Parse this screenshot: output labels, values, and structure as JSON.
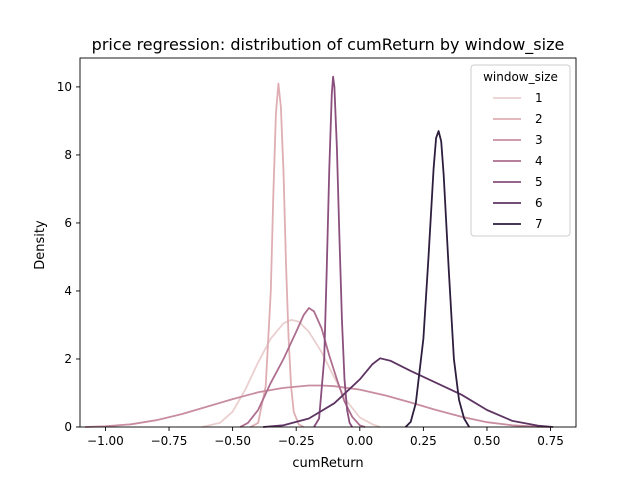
{
  "chart_data": {
    "type": "line",
    "title": "price regression: distribution of cumReturn by window_size",
    "xlabel": "cumReturn",
    "ylabel": "Density",
    "xlim": [
      -1.1,
      0.85
    ],
    "ylim": [
      0,
      10.85
    ],
    "xticks": [
      -1.0,
      -0.75,
      -0.5,
      -0.25,
      0.0,
      0.25,
      0.5,
      0.75
    ],
    "xtick_labels": [
      "−1.00",
      "−0.75",
      "−0.50",
      "−0.25",
      "0.00",
      "0.25",
      "0.50",
      "0.75"
    ],
    "yticks": [
      0,
      2,
      4,
      6,
      8,
      10
    ],
    "ytick_labels": [
      "0",
      "2",
      "4",
      "6",
      "8",
      "10"
    ],
    "grid": false,
    "legend": {
      "title": "window_size",
      "placement": "top-right",
      "entries": [
        "1",
        "2",
        "3",
        "4",
        "5",
        "6",
        "7"
      ]
    },
    "series": [
      {
        "name": "1",
        "color": "#ebcfcf",
        "points": [
          [
            -0.62,
            0.0
          ],
          [
            -0.55,
            0.12
          ],
          [
            -0.5,
            0.45
          ],
          [
            -0.45,
            1.1
          ],
          [
            -0.4,
            1.9
          ],
          [
            -0.35,
            2.6
          ],
          [
            -0.3,
            3.05
          ],
          [
            -0.27,
            3.15
          ],
          [
            -0.24,
            3.1
          ],
          [
            -0.2,
            2.8
          ],
          [
            -0.15,
            2.2
          ],
          [
            -0.1,
            1.45
          ],
          [
            -0.05,
            0.75
          ],
          [
            0.0,
            0.28
          ],
          [
            0.05,
            0.08
          ],
          [
            0.08,
            0.0
          ]
        ]
      },
      {
        "name": "2",
        "color": "#dfaeb3",
        "points": [
          [
            -0.43,
            0.0
          ],
          [
            -0.4,
            0.12
          ],
          [
            -0.37,
            1.2
          ],
          [
            -0.35,
            4.0
          ],
          [
            -0.34,
            6.8
          ],
          [
            -0.33,
            9.2
          ],
          [
            -0.32,
            10.1
          ],
          [
            -0.31,
            9.4
          ],
          [
            -0.3,
            7.5
          ],
          [
            -0.29,
            4.8
          ],
          [
            -0.28,
            2.6
          ],
          [
            -0.27,
            1.2
          ],
          [
            -0.26,
            0.45
          ],
          [
            -0.24,
            0.08
          ],
          [
            -0.22,
            0.0
          ]
        ]
      },
      {
        "name": "3",
        "color": "#c98da0",
        "points": [
          [
            -1.08,
            0.0
          ],
          [
            -1.0,
            0.02
          ],
          [
            -0.9,
            0.08
          ],
          [
            -0.8,
            0.2
          ],
          [
            -0.7,
            0.38
          ],
          [
            -0.6,
            0.6
          ],
          [
            -0.5,
            0.82
          ],
          [
            -0.4,
            1.02
          ],
          [
            -0.3,
            1.15
          ],
          [
            -0.2,
            1.22
          ],
          [
            -0.15,
            1.22
          ],
          [
            -0.1,
            1.2
          ],
          [
            0.0,
            1.1
          ],
          [
            0.1,
            0.93
          ],
          [
            0.2,
            0.72
          ],
          [
            0.3,
            0.5
          ],
          [
            0.4,
            0.3
          ],
          [
            0.5,
            0.14
          ],
          [
            0.6,
            0.05
          ],
          [
            0.7,
            0.01
          ],
          [
            0.75,
            0.0
          ]
        ]
      },
      {
        "name": "4",
        "color": "#ad6e8f",
        "points": [
          [
            -0.47,
            0.0
          ],
          [
            -0.44,
            0.12
          ],
          [
            -0.4,
            0.5
          ],
          [
            -0.35,
            1.3
          ],
          [
            -0.3,
            2.0
          ],
          [
            -0.25,
            2.8
          ],
          [
            -0.22,
            3.3
          ],
          [
            -0.2,
            3.5
          ],
          [
            -0.18,
            3.4
          ],
          [
            -0.15,
            2.9
          ],
          [
            -0.12,
            2.1
          ],
          [
            -0.09,
            1.4
          ],
          [
            -0.06,
            0.75
          ],
          [
            -0.03,
            0.3
          ],
          [
            0.0,
            0.05
          ],
          [
            0.02,
            0.0
          ]
        ]
      },
      {
        "name": "5",
        "color": "#8a4f7d",
        "points": [
          [
            -0.18,
            0.0
          ],
          [
            -0.16,
            0.25
          ],
          [
            -0.14,
            2.0
          ],
          [
            -0.13,
            4.6
          ],
          [
            -0.12,
            7.6
          ],
          [
            -0.11,
            9.8
          ],
          [
            -0.105,
            10.3
          ],
          [
            -0.1,
            10.0
          ],
          [
            -0.09,
            8.2
          ],
          [
            -0.08,
            5.6
          ],
          [
            -0.07,
            3.1
          ],
          [
            -0.06,
            1.4
          ],
          [
            -0.05,
            0.5
          ],
          [
            -0.04,
            0.12
          ],
          [
            -0.03,
            0.0
          ]
        ]
      },
      {
        "name": "6",
        "color": "#5e3463",
        "points": [
          [
            -0.38,
            0.0
          ],
          [
            -0.3,
            0.05
          ],
          [
            -0.2,
            0.25
          ],
          [
            -0.1,
            0.7
          ],
          [
            0.0,
            1.4
          ],
          [
            0.05,
            1.85
          ],
          [
            0.08,
            2.02
          ],
          [
            0.12,
            1.95
          ],
          [
            0.2,
            1.65
          ],
          [
            0.3,
            1.3
          ],
          [
            0.4,
            0.95
          ],
          [
            0.5,
            0.5
          ],
          [
            0.6,
            0.18
          ],
          [
            0.7,
            0.04
          ],
          [
            0.76,
            0.0
          ]
        ]
      },
      {
        "name": "7",
        "color": "#2d1e3e",
        "points": [
          [
            0.18,
            0.0
          ],
          [
            0.2,
            0.15
          ],
          [
            0.22,
            0.7
          ],
          [
            0.25,
            2.6
          ],
          [
            0.27,
            5.0
          ],
          [
            0.29,
            7.6
          ],
          [
            0.3,
            8.5
          ],
          [
            0.31,
            8.7
          ],
          [
            0.32,
            8.4
          ],
          [
            0.33,
            7.4
          ],
          [
            0.35,
            4.6
          ],
          [
            0.37,
            2.0
          ],
          [
            0.39,
            0.8
          ],
          [
            0.41,
            0.25
          ],
          [
            0.43,
            0.0
          ]
        ]
      }
    ]
  }
}
